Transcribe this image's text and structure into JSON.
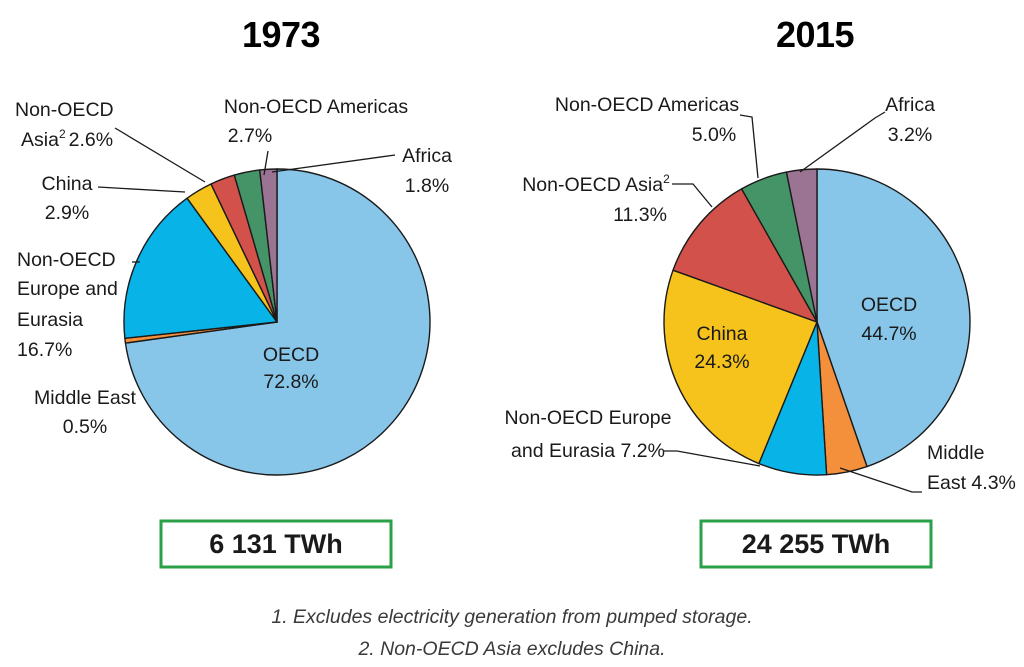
{
  "chart_data": [
    {
      "type": "pie",
      "title": "1973",
      "total_label": "6 131 TWh",
      "unit": "%",
      "start_angle": "12 o'clock",
      "direction": "clockwise",
      "slices": [
        {
          "name": "OECD",
          "value": 72.8,
          "label": "OECD",
          "pct_label": "72.8%",
          "color": "#87c6e8"
        },
        {
          "name": "Middle East",
          "value": 0.5,
          "label": "Middle East",
          "pct_label": "0.5%",
          "color": "#f4903c"
        },
        {
          "name": "Non-OECD Europe and Eurasia",
          "value": 16.7,
          "label": "Non-OECD Europe and Eurasia",
          "pct_label": "16.7%",
          "color": "#08b3e8"
        },
        {
          "name": "China",
          "value": 2.9,
          "label": "China",
          "pct_label": "2.9%",
          "color": "#f6c21c"
        },
        {
          "name": "Non-OECD Asia",
          "value": 2.6,
          "label": "Non-OECD Asia",
          "pct_label": "2.6%",
          "color": "#d3514b"
        },
        {
          "name": "Non-OECD Americas",
          "value": 2.7,
          "label": "Non-OECD Americas",
          "pct_label": "2.7%",
          "color": "#459468"
        },
        {
          "name": "Africa",
          "value": 1.8,
          "label": "Africa",
          "pct_label": "1.8%",
          "color": "#9b7393"
        }
      ]
    },
    {
      "type": "pie",
      "title": "2015",
      "total_label": "24 255 TWh",
      "unit": "%",
      "start_angle": "12 o'clock",
      "direction": "clockwise",
      "slices": [
        {
          "name": "OECD",
          "value": 44.7,
          "label": "OECD",
          "pct_label": "44.7%",
          "color": "#87c6e8"
        },
        {
          "name": "Middle East",
          "value": 4.3,
          "label": "Middle East",
          "pct_label": "4.3%",
          "color": "#f4903c"
        },
        {
          "name": "Non-OECD Europe and Eurasia",
          "value": 7.2,
          "label": "Non-OECD Europe and Eurasia",
          "pct_label": "7.2%",
          "color": "#08b3e8"
        },
        {
          "name": "China",
          "value": 24.3,
          "label": "China",
          "pct_label": "24.3%",
          "color": "#f6c21c"
        },
        {
          "name": "Non-OECD Asia",
          "value": 11.3,
          "label": "Non-OECD Asia",
          "pct_label": "11.3%",
          "color": "#d3514b"
        },
        {
          "name": "Non-OECD Americas",
          "value": 5.0,
          "label": "Non-OECD Americas",
          "pct_label": "5.0%",
          "color": "#459468"
        },
        {
          "name": "Africa",
          "value": 3.2,
          "label": "Africa",
          "pct_label": "3.2%",
          "color": "#9b7393"
        }
      ]
    }
  ],
  "labels_1973": {
    "oecd": "OECD",
    "oecd_pct": "72.8%",
    "middle_east": "Middle East",
    "middle_east_pct": "0.5%",
    "europe_l1": "Non-OECD",
    "europe_l2": "Europe and",
    "europe_l3": "Eurasia",
    "europe_pct": "16.7%",
    "china": "China",
    "china_pct": "2.9%",
    "asia_l1": "Non-OECD",
    "asia_l2": "Asia",
    "asia_sup": "2",
    "asia_pct": "2.6%",
    "americas": "Non-OECD Americas",
    "americas_pct": "2.7%",
    "africa": "Africa",
    "africa_pct": "1.8%"
  },
  "labels_2015": {
    "oecd": "OECD",
    "oecd_pct": "44.7%",
    "middle_l1": "Middle",
    "middle_l2": "East 4.3%",
    "europe_l1": "Non-OECD Europe",
    "europe_l2": "and Eurasia 7.2%",
    "china": "China",
    "china_pct": "24.3%",
    "asia": "Non-OECD Asia",
    "asia_sup": "2",
    "asia_pct": "11.3%",
    "americas": "Non-OECD Americas",
    "americas_pct": "5.0%",
    "africa": "Africa",
    "africa_pct": "3.2%"
  },
  "footnotes": {
    "note1": "1. Excludes electricity generation from pumped storage.",
    "note2": "2. Non-OECD Asia excludes China."
  },
  "colors": {
    "box_border": "#2aa148",
    "leader": "#1a1a1a",
    "slice_edge": "#1a1a1a"
  }
}
